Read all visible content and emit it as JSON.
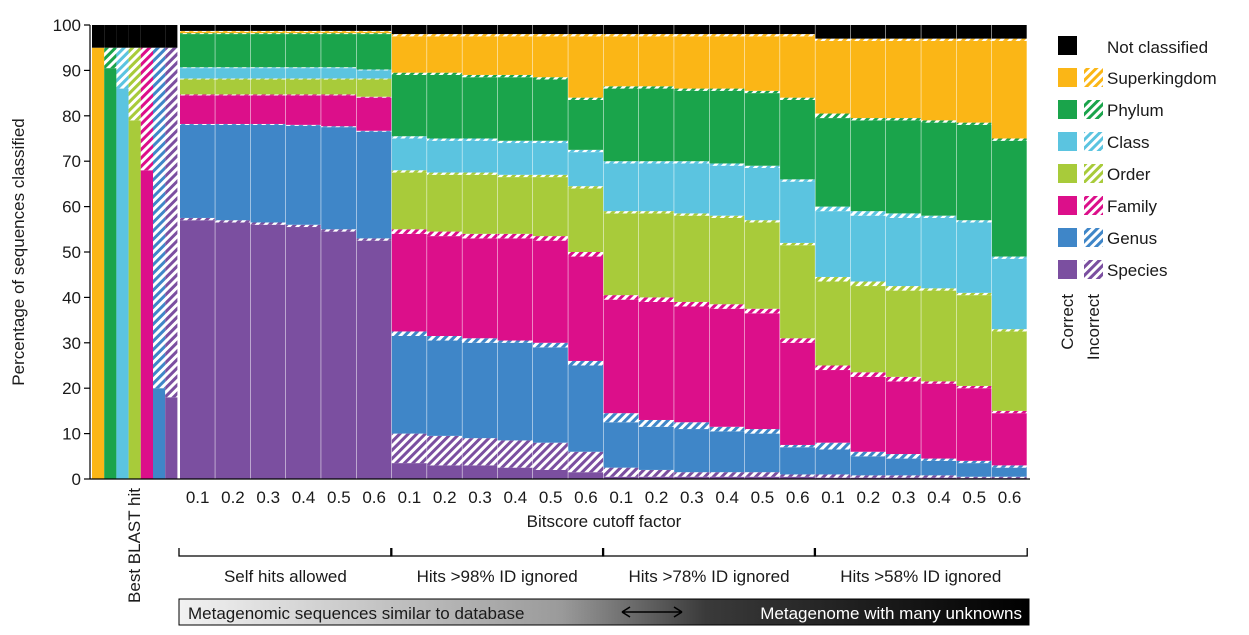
{
  "chart_data": {
    "type": "bar",
    "stacked": true,
    "ylabel": "Percentage of sequences classified",
    "xlabel": "Bitscore cutoff factor",
    "ylim": [
      0,
      100
    ],
    "yticks": [
      "0",
      "10",
      "20",
      "30",
      "40",
      "50",
      "60",
      "70",
      "80",
      "90",
      "100"
    ],
    "levels": [
      "Species",
      "Genus",
      "Family",
      "Order",
      "Class",
      "Phylum",
      "Superkingdom"
    ],
    "colors": {
      "Species": "#7b4fa0",
      "Genus": "#3f86c8",
      "Family": "#dc0f8a",
      "Order": "#a8cb3a",
      "Class": "#5bc4e0",
      "Phylum": "#1aa44b",
      "Superkingdom": "#fbb616",
      "Not classified": "#000000"
    },
    "legend": {
      "position": "right",
      "not_classified": "Not classified",
      "entries": [
        "Superkingdom",
        "Phylum",
        "Class",
        "Order",
        "Family",
        "Genus",
        "Species"
      ],
      "correct_label": "Correct",
      "incorrect_label": "Incorrect"
    },
    "best_blast": {
      "label": "Best BLAST hit",
      "bars": [
        {
          "level": "Superkingdom",
          "correct": 95,
          "incorrect": 0
        },
        {
          "level": "Phylum",
          "correct": 90.5,
          "incorrect": 4.5
        },
        {
          "level": "Class",
          "correct": 86,
          "incorrect": 9
        },
        {
          "level": "Order",
          "correct": 79,
          "incorrect": 16
        },
        {
          "level": "Family",
          "correct": 68,
          "incorrect": 27
        },
        {
          "level": "Genus",
          "correct": 20,
          "incorrect": 75
        },
        {
          "level": "Species",
          "correct": 18,
          "incorrect": 77
        }
      ]
    },
    "groups": [
      {
        "label": "Self hits allowed",
        "tick_labels": [
          "0.1",
          "0.2",
          "0.3",
          "0.4",
          "0.5",
          "0.6"
        ],
        "bars": [
          {
            "cum_correct": [
              57,
              78,
              84.5,
              88,
              90.5,
              98,
              98.5
            ],
            "cum_incorrect": [
              57.5,
              78.2,
              84.7,
              88.2,
              90.7,
              98.2,
              98.7
            ]
          },
          {
            "cum_correct": [
              56.5,
              78,
              84.5,
              88,
              90.5,
              98,
              98.5
            ],
            "cum_incorrect": [
              57,
              78.2,
              84.7,
              88.2,
              90.7,
              98.2,
              98.7
            ]
          },
          {
            "cum_correct": [
              56,
              78,
              84.5,
              88,
              90.5,
              98,
              98.5
            ],
            "cum_incorrect": [
              56.5,
              78.2,
              84.7,
              88.2,
              90.7,
              98.2,
              98.7
            ]
          },
          {
            "cum_correct": [
              55.5,
              77.8,
              84.5,
              88,
              90.5,
              98,
              98.5
            ],
            "cum_incorrect": [
              56,
              78,
              84.7,
              88.2,
              90.7,
              98.2,
              98.7
            ]
          },
          {
            "cum_correct": [
              54.5,
              77.5,
              84.5,
              88,
              90.5,
              98,
              98.5
            ],
            "cum_incorrect": [
              55,
              77.7,
              84.7,
              88.2,
              90.7,
              98.2,
              98.7
            ]
          },
          {
            "cum_correct": [
              52.5,
              76.5,
              84,
              88,
              90,
              98,
              98.5
            ],
            "cum_incorrect": [
              53,
              76.7,
              84.2,
              88.2,
              90.2,
              98.2,
              98.7
            ]
          }
        ]
      },
      {
        "label": "Hits >98% ID ignored",
        "tick_labels": [
          "0.1",
          "0.2",
          "0.3",
          "0.4",
          "0.5",
          "0.6"
        ],
        "bars": [
          {
            "cum_correct": [
              3.5,
              31.5,
              54,
              67.5,
              75,
              89,
              97.5
            ],
            "cum_incorrect": [
              10,
              32.5,
              55,
              68,
              75.5,
              89.5,
              98
            ]
          },
          {
            "cum_correct": [
              3,
              30.5,
              53.5,
              67,
              74.5,
              89,
              97.5
            ],
            "cum_incorrect": [
              9.5,
              31.5,
              54.5,
              67.5,
              75,
              89.5,
              98
            ]
          },
          {
            "cum_correct": [
              3,
              30,
              53,
              67,
              74.5,
              88.5,
              97.5
            ],
            "cum_incorrect": [
              9,
              31,
              54,
              67.5,
              75,
              89,
              98
            ]
          },
          {
            "cum_correct": [
              2.5,
              30,
              53,
              66.5,
              74,
              88.5,
              97.5
            ],
            "cum_incorrect": [
              8.5,
              30.5,
              54,
              67,
              74.5,
              89,
              98
            ]
          },
          {
            "cum_correct": [
              2,
              29,
              52.5,
              66.5,
              74,
              88,
              97.5
            ],
            "cum_incorrect": [
              8,
              30,
              53.5,
              67,
              74.5,
              88.5,
              98
            ]
          },
          {
            "cum_correct": [
              1.5,
              25,
              49,
              64,
              72,
              83.5,
              97.5
            ],
            "cum_incorrect": [
              6,
              26,
              50,
              64.5,
              72.5,
              84,
              98
            ]
          }
        ]
      },
      {
        "label": "Hits >78% ID ignored",
        "tick_labels": [
          "0.1",
          "0.2",
          "0.3",
          "0.4",
          "0.5",
          "0.6"
        ],
        "bars": [
          {
            "cum_correct": [
              0.5,
              12.5,
              39.5,
              58.5,
              69.5,
              86,
              97.5
            ],
            "cum_incorrect": [
              2.5,
              14.5,
              40.5,
              59,
              70,
              86.5,
              98
            ]
          },
          {
            "cum_correct": [
              0.5,
              11.5,
              39,
              58.5,
              69.5,
              86,
              97.5
            ],
            "cum_incorrect": [
              2,
              13,
              40,
              59,
              70,
              86.5,
              98
            ]
          },
          {
            "cum_correct": [
              0.5,
              11,
              38,
              58,
              69.5,
              85.5,
              97.5
            ],
            "cum_incorrect": [
              1.5,
              12.5,
              39,
              58.5,
              70,
              86,
              98
            ]
          },
          {
            "cum_correct": [
              0.5,
              10.5,
              37.5,
              57.5,
              69,
              85.5,
              97.5
            ],
            "cum_incorrect": [
              1.5,
              11.5,
              38.5,
              58,
              69.5,
              86,
              98
            ]
          },
          {
            "cum_correct": [
              0.5,
              10,
              36.5,
              56.5,
              68.5,
              85,
              97.5
            ],
            "cum_incorrect": [
              1.5,
              11,
              37.5,
              57,
              69,
              85.5,
              98
            ]
          },
          {
            "cum_correct": [
              0.5,
              7,
              30,
              51.5,
              65.5,
              83.5,
              97.5
            ],
            "cum_incorrect": [
              1,
              7.5,
              31,
              52,
              66,
              84,
              98
            ]
          }
        ]
      },
      {
        "label": "Hits >58% ID ignored",
        "tick_labels": [
          "0.1",
          "0.2",
          "0.3",
          "0.4",
          "0.5",
          "0.6"
        ],
        "bars": [
          {
            "cum_correct": [
              0.3,
              6.5,
              24,
              43.5,
              59,
              79.5,
              96.5
            ],
            "cum_incorrect": [
              1,
              8,
              25,
              44.5,
              60,
              80.5,
              97
            ]
          },
          {
            "cum_correct": [
              0.3,
              5,
              22.5,
              42.5,
              58,
              79,
              96.5
            ],
            "cum_incorrect": [
              0.8,
              6,
              23.5,
              43.5,
              59,
              79.5,
              97
            ]
          },
          {
            "cum_correct": [
              0.3,
              4.5,
              21.5,
              41.5,
              57.5,
              79,
              96.5
            ],
            "cum_incorrect": [
              0.8,
              5.5,
              22.5,
              42.5,
              58.5,
              79.5,
              97
            ]
          },
          {
            "cum_correct": [
              0.3,
              4,
              21,
              41.5,
              57.5,
              78.5,
              96.5
            ],
            "cum_incorrect": [
              0.8,
              4.5,
              21.5,
              42,
              58,
              79,
              97
            ]
          },
          {
            "cum_correct": [
              0.2,
              3.5,
              20,
              40.5,
              56.5,
              78,
              96.5
            ],
            "cum_incorrect": [
              0.5,
              4,
              20.5,
              41,
              57,
              78.5,
              97
            ]
          },
          {
            "cum_correct": [
              0.2,
              2.5,
              14.5,
              32.5,
              48.5,
              74.5,
              96.5
            ],
            "cum_incorrect": [
              0.5,
              3,
              15,
              33,
              49,
              75,
              97
            ]
          }
        ]
      }
    ],
    "gradient_bar": {
      "left_label": "Metagenomic sequences similar to database",
      "right_label": "Metagenome with many unknowns"
    }
  }
}
